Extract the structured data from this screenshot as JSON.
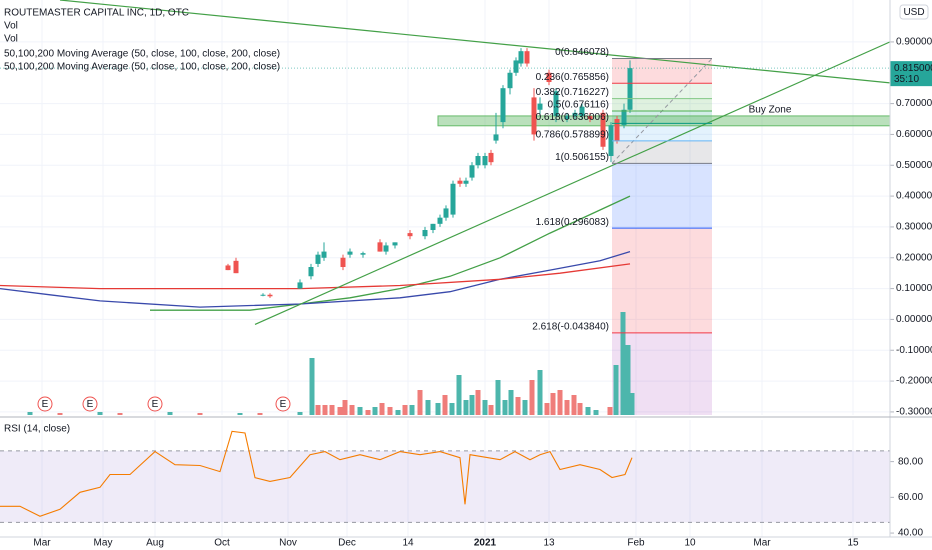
{
  "chart_data": {
    "type": "candlestick",
    "title": "ROUTEMASTER CAPITAL INC, 1D, OTC",
    "legend_lines": [
      "Vol",
      "Vol",
      "50,100,200 Moving Average (50, close, 100, close, 200, close)",
      "50,100,200 Moving Average (50, close, 100, close, 200, close)"
    ],
    "currency": "USD",
    "grid": true,
    "xlim": [
      0,
      89
    ],
    "xticks": [
      {
        "value": 4.2,
        "label": "Mar"
      },
      {
        "value": 10.3,
        "label": "May"
      },
      {
        "value": 15.5,
        "label": "Aug"
      },
      {
        "value": 22.2,
        "label": "Oct"
      },
      {
        "value": 28.8,
        "label": "Nov"
      },
      {
        "value": 34.7,
        "label": "Dec"
      },
      {
        "value": 40.8,
        "label": "14"
      },
      {
        "value": 48.5,
        "label": "2021"
      },
      {
        "value": 54.9,
        "label": "13"
      },
      {
        "value": 63.6,
        "label": "Feb"
      },
      {
        "value": 69,
        "label": "10"
      },
      {
        "value": 76.2,
        "label": "Mar"
      },
      {
        "value": 85.3,
        "label": "15"
      }
    ],
    "ylim": [
      -0.31,
      1.036
    ],
    "yticks": [
      {
        "value": 0.9,
        "label": "0.900000"
      },
      {
        "value": 0.7,
        "label": "0.700000"
      },
      {
        "value": 0.6,
        "label": "0.600000"
      },
      {
        "value": 0.5,
        "label": "0.500000"
      },
      {
        "value": 0.4,
        "label": "0.400000"
      },
      {
        "value": 0.3,
        "label": "0.300000"
      },
      {
        "value": 0.2,
        "label": "0.200000"
      },
      {
        "value": 0.1,
        "label": "0.100000"
      },
      {
        "value": 0,
        "label": "0.000000"
      },
      {
        "value": -0.1,
        "label": "-0.100000"
      },
      {
        "value": -0.2,
        "label": "-0.200000"
      },
      {
        "value": -0.3,
        "label": "-0.300000"
      }
    ],
    "current_price": {
      "value": 0.815,
      "label": "0.815000",
      "countdown": "35:10",
      "color": "#26a69a"
    },
    "up_color": "#26a69a",
    "down_color": "#ef5350",
    "candles": {
      "x": [
        22.8,
        23.6,
        26.3,
        27.0,
        30.0,
        31.1,
        31.8,
        32.4,
        34.3,
        35.0,
        36.3,
        38.0,
        38.6,
        39.5,
        41.0,
        42.5,
        43.3,
        44.0,
        44.6,
        45.3,
        46.0,
        46.6,
        47.2,
        47.8,
        48.5,
        49.1,
        49.6,
        50.3,
        51.0,
        51.6,
        52.1,
        52.7,
        53.4,
        54.0,
        54.9,
        55.6,
        56.7,
        57.5,
        58.2,
        59.0,
        60.3,
        61.1,
        61.7,
        62.4,
        63.0
      ],
      "open": [
        0.175,
        0.19,
        0.08,
        0.08,
        0.1,
        0.14,
        0.18,
        0.2,
        0.2,
        0.21,
        0.21,
        0.25,
        0.22,
        0.24,
        0.28,
        0.27,
        0.29,
        0.31,
        0.33,
        0.34,
        0.45,
        0.44,
        0.46,
        0.5,
        0.5,
        0.54,
        0.58,
        0.64,
        0.75,
        0.8,
        0.83,
        0.87,
        0.72,
        0.68,
        0.8,
        0.66,
        0.65,
        0.66,
        0.66,
        0.66,
        0.67,
        0.53,
        0.65,
        0.63,
        0.68
      ],
      "high": [
        0.18,
        0.2,
        0.085,
        0.085,
        0.13,
        0.18,
        0.22,
        0.25,
        0.21,
        0.23,
        0.22,
        0.26,
        0.25,
        0.25,
        0.29,
        0.3,
        0.31,
        0.34,
        0.37,
        0.45,
        0.46,
        0.46,
        0.51,
        0.54,
        0.54,
        0.55,
        0.67,
        0.76,
        0.81,
        0.85,
        0.88,
        0.88,
        0.75,
        0.72,
        0.81,
        0.75,
        0.67,
        0.68,
        0.7,
        0.67,
        0.68,
        0.64,
        0.66,
        0.7,
        0.84
      ],
      "low": [
        0.16,
        0.15,
        0.075,
        0.07,
        0.1,
        0.13,
        0.17,
        0.19,
        0.16,
        0.2,
        0.2,
        0.22,
        0.21,
        0.23,
        0.26,
        0.26,
        0.28,
        0.3,
        0.32,
        0.33,
        0.43,
        0.43,
        0.45,
        0.49,
        0.49,
        0.5,
        0.57,
        0.62,
        0.73,
        0.79,
        0.82,
        0.82,
        0.58,
        0.66,
        0.76,
        0.64,
        0.64,
        0.65,
        0.65,
        0.64,
        0.55,
        0.51,
        0.57,
        0.62,
        0.67
      ],
      "close": [
        0.16,
        0.15,
        0.08,
        0.075,
        0.12,
        0.17,
        0.21,
        0.22,
        0.17,
        0.22,
        0.215,
        0.22,
        0.24,
        0.25,
        0.27,
        0.29,
        0.31,
        0.33,
        0.36,
        0.44,
        0.44,
        0.45,
        0.5,
        0.53,
        0.53,
        0.51,
        0.6,
        0.75,
        0.8,
        0.84,
        0.87,
        0.83,
        0.6,
        0.7,
        0.77,
        0.74,
        0.66,
        0.67,
        0.69,
        0.65,
        0.56,
        0.63,
        0.58,
        0.68,
        0.815
      ]
    },
    "moving_averages": [
      {
        "color": "#43a047",
        "x": [
          15,
          25,
          30,
          35,
          40,
          45,
          50,
          55,
          59,
          63
        ],
        "values": [
          0.03,
          0.03,
          0.05,
          0.07,
          0.1,
          0.14,
          0.2,
          0.28,
          0.34,
          0.4
        ]
      },
      {
        "color": "#3949ab",
        "x": [
          0,
          5,
          10,
          20,
          30,
          40,
          45,
          50,
          55,
          60,
          63
        ],
        "values": [
          0.1,
          0.08,
          0.06,
          0.04,
          0.05,
          0.07,
          0.09,
          0.13,
          0.16,
          0.19,
          0.22
        ]
      },
      {
        "color": "#e53935",
        "x": [
          0,
          10,
          20,
          30,
          40,
          50,
          56,
          63
        ],
        "values": [
          0.11,
          0.1,
          0.1,
          0.1,
          0.11,
          0.13,
          0.15,
          0.18
        ]
      }
    ],
    "trend_lines": [
      {
        "color": "#43a047",
        "x": [
          6.0,
          89
        ],
        "values": [
          1.036,
          0.767
        ]
      },
      {
        "color": "#43a047",
        "x": [
          25.5,
          89
        ],
        "values": [
          -0.016,
          0.9
        ]
      }
    ],
    "buy_zone": {
      "label": "Buy Zone",
      "color": "#66bb6a",
      "text_color": "#2196f3",
      "x": [
        43.8,
        89
      ],
      "values": [
        0.66,
        0.628
      ],
      "label_x": 77.0,
      "label_value": 0.68
    },
    "fibonacci": {
      "x": [
        61.2,
        71.2
      ],
      "trend_x": [
        61.2,
        71.2
      ],
      "trend_values": [
        0.506155,
        0.846078
      ],
      "below_color": "#9c27b0",
      "levels": [
        {
          "label": "0(0.846078)",
          "value": 0.846078,
          "color": "#787b86"
        },
        {
          "label": "0.236(0.765856)",
          "value": 0.765856,
          "color": "#f23645"
        },
        {
          "label": "0.382(0.716227)",
          "value": 0.716227,
          "color": "#81c784"
        },
        {
          "label": "0.5(0.676116)",
          "value": 0.676116,
          "color": "#4caf50"
        },
        {
          "label": "0.618(0.636006)",
          "value": 0.636006,
          "color": "#089981"
        },
        {
          "label": "0.786(0.578899)",
          "value": 0.578899,
          "color": "#64b5f6"
        },
        {
          "label": "1(0.506155)",
          "value": 0.506155,
          "color": "#787b86"
        },
        {
          "label": "1.618(0.296083)",
          "value": 0.296083,
          "color": "#2962ff"
        },
        {
          "label": "2.618(-0.043840)",
          "value": -0.04384,
          "color": "#f23645"
        }
      ]
    },
    "earnings_markers": {
      "label": "E",
      "x": [
        4.5,
        9.0,
        15.5,
        28.3
      ],
      "color": "#ef5350"
    },
    "volume": {
      "ylim": [
        0,
        110
      ],
      "up": {
        "color": "#4db6ac",
        "x": [
          3.0,
          10.0,
          17.0,
          24.0,
          30.0,
          31.2,
          36.0,
          37.5,
          39.8,
          41.2,
          42.8,
          43.8,
          45.2,
          45.9,
          46.6,
          47.2,
          48.5,
          49.8,
          50.5,
          51.1,
          52.5,
          54.0,
          58.8,
          59.6,
          61.6,
          62.3,
          62.8,
          63.2
        ],
        "values": [
          3,
          3,
          3,
          2,
          3,
          57,
          8,
          8,
          5,
          10,
          15,
          12,
          12,
          40,
          15,
          20,
          15,
          35,
          15,
          25,
          15,
          45,
          8,
          5,
          50,
          103,
          70,
          22
        ]
      },
      "down": {
        "color": "#ef7d7a",
        "x": [
          6.0,
          12.0,
          20.0,
          26.0,
          31.8,
          32.5,
          33.2,
          34.0,
          34.5,
          35.2,
          36.8,
          38.2,
          39.0,
          40.5,
          42.0,
          44.5,
          47.8,
          49.1,
          51.8,
          53.2,
          54.7,
          55.3,
          56.0,
          56.7,
          57.4,
          58.0,
          61.0
        ],
        "values": [
          2,
          2,
          2,
          2,
          10,
          10,
          10,
          8,
          15,
          10,
          5,
          12,
          8,
          10,
          25,
          20,
          25,
          10,
          18,
          35,
          12,
          22,
          25,
          15,
          20,
          12,
          8
        ]
      }
    },
    "rsi": {
      "label": "RSI (14, close)",
      "color": "#f57c00",
      "band": [
        46,
        86
      ],
      "band_color": "#7e57c2",
      "ylim": [
        37.8,
        103.3
      ],
      "yticks": [
        {
          "value": 80,
          "label": "80.00"
        },
        {
          "value": 60,
          "label": "60.00"
        },
        {
          "value": 40,
          "label": "40.00"
        }
      ],
      "x": [
        0,
        2,
        4,
        6,
        8,
        10,
        11,
        13,
        15.5,
        17.5,
        20,
        22,
        23.2,
        24.5,
        25.5,
        27,
        29,
        31,
        32.5,
        34,
        36,
        38,
        40,
        42,
        44,
        46,
        46.5,
        47,
        50,
        51.5,
        53,
        54,
        55,
        56,
        58,
        60,
        61.2,
        62.5,
        63.2
      ],
      "values": [
        55,
        55,
        49.4,
        53.3,
        62.8,
        65.6,
        72.8,
        72.8,
        85.6,
        78.3,
        77.8,
        74.4,
        97,
        96,
        71,
        68.9,
        71.1,
        83.9,
        85.6,
        81.1,
        83.9,
        81.1,
        85.6,
        83.9,
        85.6,
        82.2,
        56.1,
        83.9,
        81.1,
        85.6,
        81.1,
        83.9,
        85.6,
        75.6,
        78.3,
        75.6,
        71.1,
        72.8,
        82.2
      ]
    }
  }
}
